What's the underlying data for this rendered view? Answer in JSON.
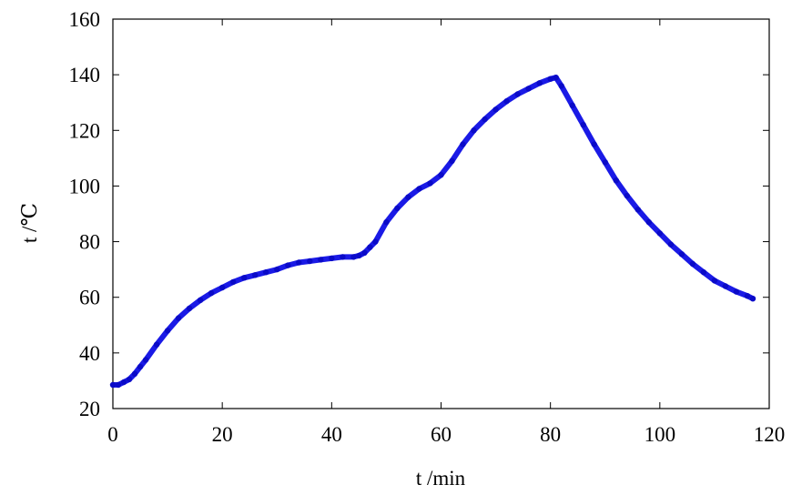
{
  "chart_data": {
    "type": "line",
    "xlabel": "t /min",
    "ylabel": "t /℃",
    "xlim": [
      0,
      120
    ],
    "ylim": [
      20,
      160
    ],
    "xticks": [
      0,
      20,
      40,
      60,
      80,
      100,
      120
    ],
    "yticks": [
      20,
      40,
      60,
      80,
      100,
      120,
      140,
      160
    ],
    "grid": false,
    "series": [
      {
        "color": "#1a1ae6",
        "x": [
          0,
          1,
          2,
          3,
          4,
          5,
          6,
          8,
          10,
          12,
          14,
          16,
          18,
          20,
          22,
          24,
          26,
          28,
          30,
          32,
          34,
          36,
          38,
          40,
          42,
          44,
          45,
          46,
          47,
          48,
          50,
          52,
          54,
          56,
          58,
          60,
          62,
          64,
          66,
          68,
          70,
          72,
          74,
          76,
          78,
          80,
          81,
          82,
          84,
          86,
          88,
          90,
          92,
          94,
          96,
          98,
          100,
          102,
          104,
          106,
          108,
          110,
          112,
          114,
          116,
          117
        ],
        "y": [
          28.5,
          28.5,
          29.5,
          30.5,
          32.5,
          35,
          37.5,
          43,
          48,
          52.5,
          56,
          59,
          61.5,
          63.5,
          65.5,
          67,
          68,
          69,
          70,
          71.5,
          72.5,
          73,
          73.5,
          74,
          74.5,
          74.5,
          75,
          76,
          78,
          80,
          87,
          92,
          96,
          99,
          101,
          104,
          109,
          115,
          120,
          124,
          127.5,
          130.5,
          133,
          135,
          137,
          138.5,
          139,
          136,
          129,
          122,
          115,
          108.5,
          102,
          96.5,
          91.5,
          87,
          83,
          79,
          75.5,
          72,
          69,
          66,
          64,
          62,
          60.5,
          59.5
        ]
      }
    ]
  }
}
